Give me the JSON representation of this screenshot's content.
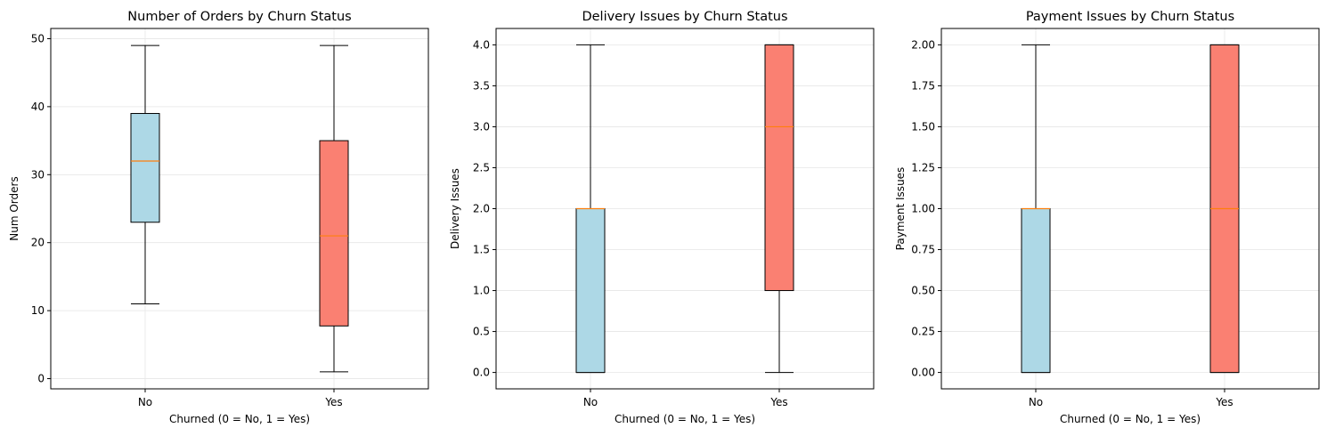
{
  "chart_data": [
    {
      "type": "box",
      "title": "Number of Orders by Churn Status",
      "xlabel": "Churned (0 = No, 1 = Yes)",
      "ylabel": "Num Orders",
      "categories": [
        "No",
        "Yes"
      ],
      "ylim": [
        -1.5,
        51.5
      ],
      "yticks": [
        0,
        10,
        20,
        30,
        40,
        50
      ],
      "ytick_labels": [
        "0",
        "10",
        "20",
        "30",
        "40",
        "50"
      ],
      "grid": true,
      "boxes": [
        {
          "category": "No",
          "whisker_low": 11,
          "q1": 23,
          "median": 32,
          "q3": 39,
          "whisker_high": 49,
          "color": "#add8e6"
        },
        {
          "category": "Yes",
          "whisker_low": 1,
          "q1": 7.75,
          "median": 21,
          "q3": 35,
          "whisker_high": 49,
          "color": "#fa8072"
        }
      ]
    },
    {
      "type": "box",
      "title": "Delivery Issues by Churn Status",
      "xlabel": "Churned (0 = No, 1 = Yes)",
      "ylabel": "Delivery Issues",
      "categories": [
        "No",
        "Yes"
      ],
      "ylim": [
        -0.2,
        4.2
      ],
      "yticks": [
        0,
        0.5,
        1,
        1.5,
        2,
        2.5,
        3,
        3.5,
        4
      ],
      "ytick_labels": [
        "0.0",
        "0.5",
        "1.0",
        "1.5",
        "2.0",
        "2.5",
        "3.0",
        "3.5",
        "4.0"
      ],
      "grid": true,
      "boxes": [
        {
          "category": "No",
          "whisker_low": 0,
          "q1": 0,
          "median": 2,
          "q3": 2,
          "whisker_high": 4,
          "color": "#add8e6"
        },
        {
          "category": "Yes",
          "whisker_low": 0,
          "q1": 1,
          "median": 3,
          "q3": 4,
          "whisker_high": 4,
          "color": "#fa8072"
        }
      ]
    },
    {
      "type": "box",
      "title": "Payment Issues by Churn Status",
      "xlabel": "Churned (0 = No, 1 = Yes)",
      "ylabel": "Payment Issues",
      "categories": [
        "No",
        "Yes"
      ],
      "ylim": [
        -0.1,
        2.1
      ],
      "yticks": [
        0,
        0.25,
        0.5,
        0.75,
        1,
        1.25,
        1.5,
        1.75,
        2
      ],
      "ytick_labels": [
        "0.00",
        "0.25",
        "0.50",
        "0.75",
        "1.00",
        "1.25",
        "1.50",
        "1.75",
        "2.00"
      ],
      "grid": true,
      "boxes": [
        {
          "category": "No",
          "whisker_low": 0,
          "q1": 0,
          "median": 1,
          "q3": 1,
          "whisker_high": 2,
          "color": "#add8e6"
        },
        {
          "category": "Yes",
          "whisker_low": 0,
          "q1": 0,
          "median": 1,
          "q3": 2,
          "whisker_high": 2,
          "color": "#fa8072"
        }
      ]
    }
  ],
  "style": {
    "median_color": "#ff7f0e",
    "grid_color": "#e6e6e6",
    "axis_color": "#000000"
  }
}
